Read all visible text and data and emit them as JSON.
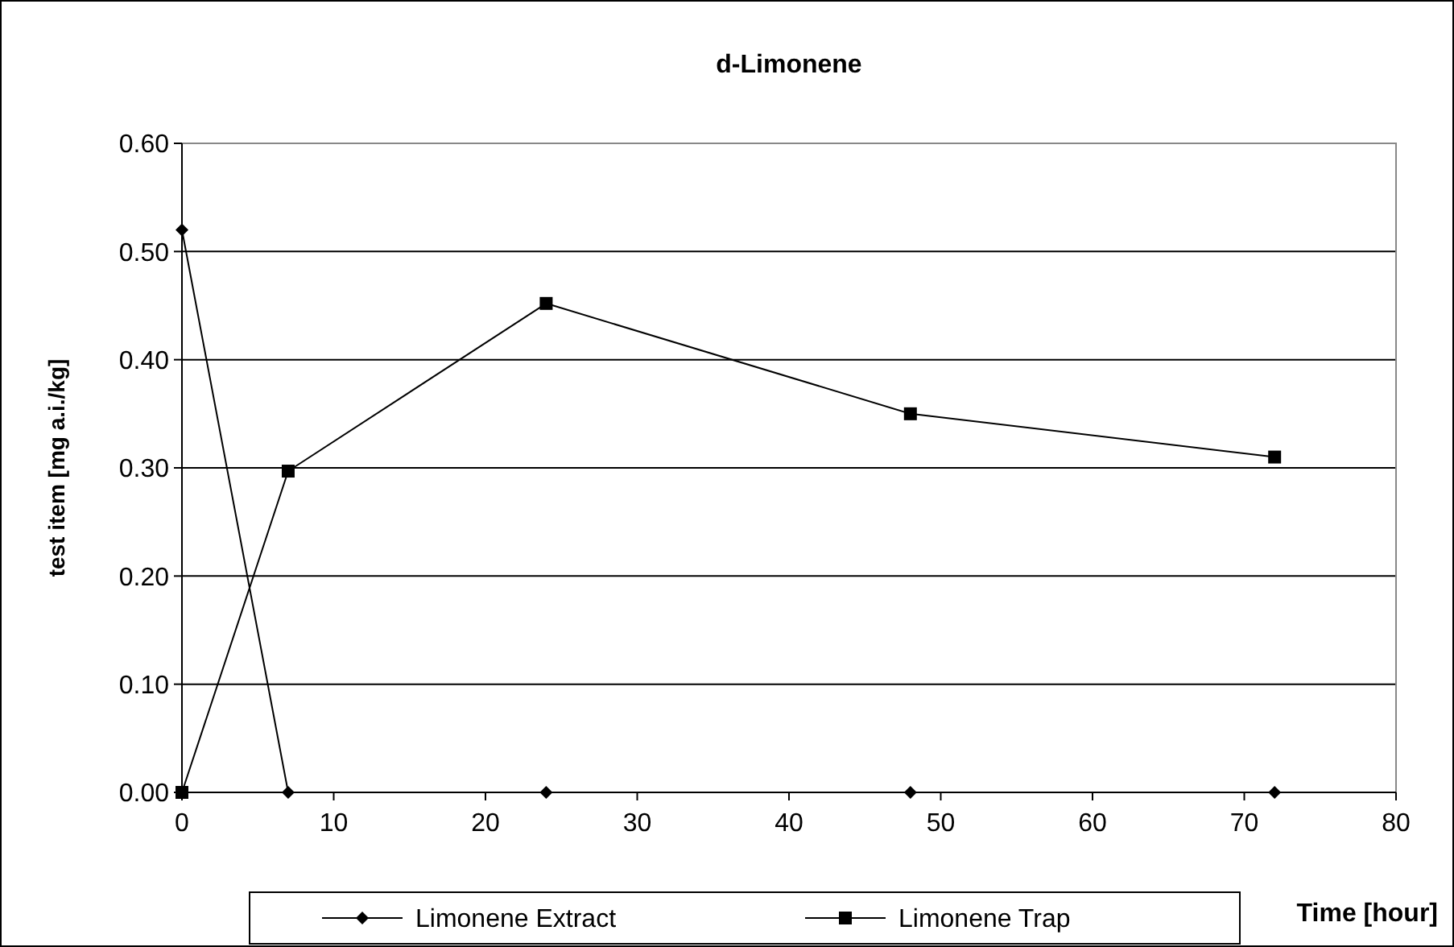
{
  "chart_data": {
    "type": "line",
    "title": "d-Limonene",
    "xlabel": "Time [hour]",
    "ylabel": "test item [mg a.i./kg]",
    "xlim": [
      0,
      80
    ],
    "xticks": [
      0,
      10,
      20,
      30,
      40,
      50,
      60,
      70,
      80
    ],
    "ylim": [
      0,
      0.6
    ],
    "yticks": [
      {
        "value": 0,
        "label": "0.00"
      },
      {
        "value": 0.1,
        "label": "0.10"
      },
      {
        "value": 0.2,
        "label": "0.20"
      },
      {
        "value": 0.3,
        "label": "0.30"
      },
      {
        "value": 0.4,
        "label": "0.40"
      },
      {
        "value": 0.5,
        "label": "0.50"
      },
      {
        "value": 0.6,
        "label": "0.60"
      }
    ],
    "grid": "y",
    "legend": "bottom",
    "line_style": "solid",
    "series": [
      {
        "name": "Limonene Extract",
        "color": "#000000",
        "marker": "diamond",
        "x": [
          0,
          7,
          24,
          48,
          72
        ],
        "values": [
          0.52,
          0,
          0,
          0,
          0
        ]
      },
      {
        "name": "Limonene Trap",
        "color": "#000000",
        "marker": "square",
        "x": [
          0,
          7,
          24,
          48,
          72
        ],
        "values": [
          0,
          0.297,
          0.452,
          0.35,
          0.31
        ]
      }
    ]
  }
}
